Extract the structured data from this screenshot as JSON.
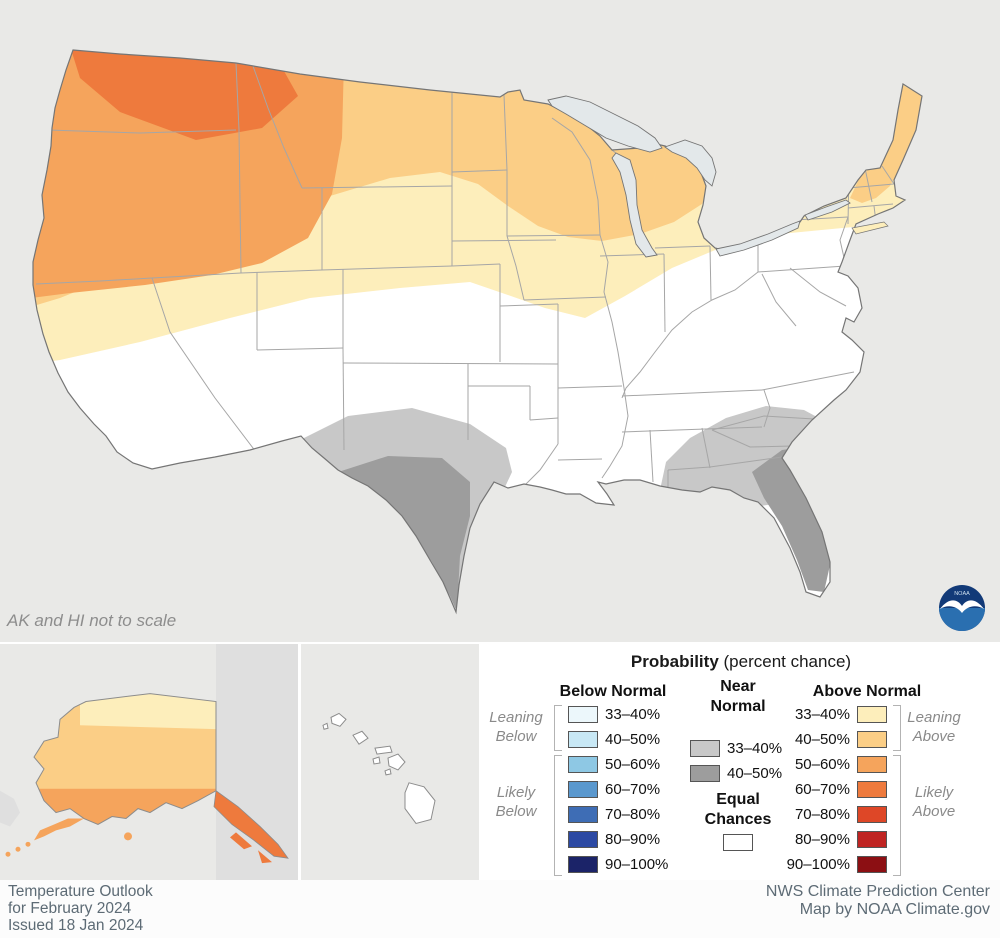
{
  "note": {
    "ak_hi": "AK and HI not to scale"
  },
  "map": {
    "region_colors": {
      "background": "#e9e9e7",
      "us_fill": "#ffffff",
      "border": "#757575",
      "state_line": "#a6a6a6",
      "lake_fill": "#e3e8ea",
      "canada_fill": "#dfdfdf",
      "island_fill": "#ffffff"
    }
  },
  "legend": {
    "title_bold": "Probability",
    "title_rest": " (percent chance)",
    "columns": {
      "below": {
        "header": "Below Normal",
        "rows": [
          {
            "label": "33–40%",
            "color": "#ecf7fb"
          },
          {
            "label": "40–50%",
            "color": "#c8e8f5"
          },
          {
            "label": "50–60%",
            "color": "#8ec8e4"
          },
          {
            "label": "60–70%",
            "color": "#5a98ce"
          },
          {
            "label": "70–80%",
            "color": "#3e6db5"
          },
          {
            "label": "80–90%",
            "color": "#2c49a3"
          },
          {
            "label": "90–100%",
            "color": "#1b2368"
          }
        ]
      },
      "near": {
        "header": [
          "Near",
          "Normal"
        ],
        "rows": [
          {
            "label": "33–40%",
            "color": "#c8c8c8"
          },
          {
            "label": "40–50%",
            "color": "#9d9d9d"
          }
        ],
        "equal": {
          "label": [
            "Equal",
            "Chances"
          ],
          "color": "#ffffff"
        }
      },
      "above": {
        "header": "Above Normal",
        "rows": [
          {
            "label": "33–40%",
            "color": "#fdeebb"
          },
          {
            "label": "40–50%",
            "color": "#fbce86"
          },
          {
            "label": "50–60%",
            "color": "#f5a45c"
          },
          {
            "label": "60–70%",
            "color": "#ee7a3d"
          },
          {
            "label": "70–80%",
            "color": "#de4727"
          },
          {
            "label": "80–90%",
            "color": "#bf2422"
          },
          {
            "label": "90–100%",
            "color": "#8c0f13"
          }
        ]
      }
    },
    "group_labels": {
      "leaning_below": [
        "Leaning",
        "Below"
      ],
      "likely_below": [
        "Likely",
        "Below"
      ],
      "leaning_above": [
        "Leaning",
        "Above"
      ],
      "likely_above": [
        "Likely",
        "Above"
      ]
    }
  },
  "footer": {
    "left": [
      "Temperature Outlook",
      "for February 2024",
      "Issued 18 Jan 2024"
    ],
    "right": [
      "NWS Climate Prediction Center",
      "Map by NOAA Climate.gov"
    ]
  },
  "logo": {
    "label": "NOAA"
  }
}
